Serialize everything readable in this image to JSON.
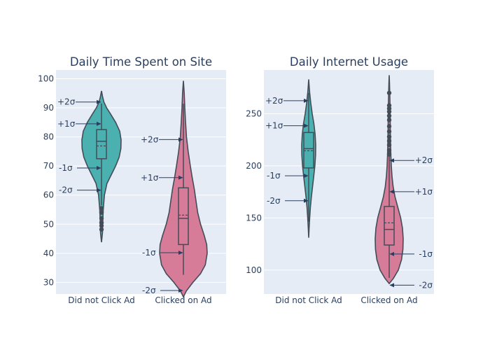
{
  "chart_data": [
    {
      "type": "violin",
      "title": "Daily Time Spent on Site",
      "categories": [
        "Did not Click Ad",
        "Clicked on Ad"
      ],
      "ylim": [
        26,
        103
      ],
      "yticks": [
        30,
        40,
        50,
        60,
        70,
        80,
        90,
        100
      ],
      "grid": true,
      "violins": [
        {
          "category": "Did not Click Ad",
          "color": "#4bb0b0",
          "min": 48.2,
          "q1": 72.5,
          "median": 78.5,
          "q3": 82.5,
          "max": 91.5,
          "mean": 76.9,
          "upper_fence": 91.5,
          "lower_fence": 56.5,
          "outliers": [
            55.5,
            54,
            52,
            50.5,
            49.5,
            48.2
          ],
          "profile_range": [
            43.8,
            95.8
          ],
          "profile": [
            [
              43.8,
              0
            ],
            [
              47,
              0.05
            ],
            [
              52,
              0.07
            ],
            [
              55,
              0.09
            ],
            [
              60,
              0.15
            ],
            [
              64,
              0.28
            ],
            [
              67,
              0.5
            ],
            [
              70,
              0.72
            ],
            [
              73,
              0.9
            ],
            [
              76,
              0.99
            ],
            [
              79,
              1.0
            ],
            [
              82,
              0.93
            ],
            [
              85,
              0.72
            ],
            [
              88,
              0.45
            ],
            [
              90,
              0.26
            ],
            [
              92,
              0.12
            ],
            [
              94,
              0.05
            ],
            [
              95.8,
              0
            ]
          ],
          "sigma_labels": [
            {
              "label": "+2σ",
              "value": 92
            },
            {
              "label": "+1σ",
              "value": 84.5
            },
            {
              "label": "-1σ",
              "value": 69.3
            },
            {
              "label": "-2σ",
              "value": 61.7
            }
          ]
        },
        {
          "category": "Clicked on Ad",
          "color": "#d77c98",
          "min": 32.6,
          "q1": 43,
          "median": 52,
          "q3": 62.5,
          "max": 91.4,
          "mean": 53.1,
          "upper_fence": 91.4,
          "lower_fence": 32.6,
          "outliers": [],
          "profile_range": [
            25,
            99.3
          ],
          "profile": [
            [
              25,
              0
            ],
            [
              27,
              0.12
            ],
            [
              30,
              0.4
            ],
            [
              33,
              0.72
            ],
            [
              36,
              0.92
            ],
            [
              40,
              1.0
            ],
            [
              43,
              0.98
            ],
            [
              46,
              0.88
            ],
            [
              50,
              0.72
            ],
            [
              54,
              0.6
            ],
            [
              58,
              0.53
            ],
            [
              62,
              0.46
            ],
            [
              66,
              0.37
            ],
            [
              70,
              0.29
            ],
            [
              75,
              0.2
            ],
            [
              80,
              0.13
            ],
            [
              85,
              0.09
            ],
            [
              90,
              0.06
            ],
            [
              95,
              0.035
            ],
            [
              99.3,
              0
            ]
          ],
          "sigma_labels": [
            {
              "label": "+2σ",
              "value": 79.1
            },
            {
              "label": "+1σ",
              "value": 66
            },
            {
              "label": "-1σ",
              "value": 40.2
            },
            {
              "label": "-2σ",
              "value": 27.2
            }
          ]
        }
      ]
    },
    {
      "type": "violin",
      "title": "Daily Internet Usage",
      "categories": [
        "Did not Click Ad",
        "Clicked on Ad"
      ],
      "ylim": [
        77,
        292
      ],
      "yticks": [
        100,
        150,
        200,
        250
      ],
      "grid": true,
      "violins": [
        {
          "category": "Did not Click Ad",
          "color": "#4bb0b0",
          "min": 146.5,
          "q1": 198,
          "median": 216.5,
          "q3": 232,
          "max": 270,
          "mean": 214.5,
          "upper_fence": 270,
          "lower_fence": 146.5,
          "outliers": [],
          "profile_range": [
            131,
            283
          ],
          "profile": [
            [
              131,
              0
            ],
            [
              140,
              0.06
            ],
            [
              150,
              0.14
            ],
            [
              160,
              0.24
            ],
            [
              170,
              0.38
            ],
            [
              180,
              0.55
            ],
            [
              190,
              0.72
            ],
            [
              200,
              0.88
            ],
            [
              210,
              0.98
            ],
            [
              220,
              1.0
            ],
            [
              230,
              0.92
            ],
            [
              240,
              0.75
            ],
            [
              250,
              0.5
            ],
            [
              260,
              0.3
            ],
            [
              270,
              0.14
            ],
            [
              276,
              0.07
            ],
            [
              283,
              0
            ]
          ],
          "sigma_labels": [
            {
              "label": "+2σ",
              "value": 262.5
            },
            {
              "label": "+1σ",
              "value": 238.5
            },
            {
              "label": "-1σ",
              "value": 190.5
            },
            {
              "label": "-2σ",
              "value": 166.5
            }
          ]
        },
        {
          "category": "Clicked on Ad",
          "color": "#d77c98",
          "min": 92.5,
          "q1": 124,
          "median": 139,
          "q3": 161,
          "max": 270,
          "mean": 145.3,
          "upper_fence": 210,
          "lower_fence": 92.5,
          "outliers": [
            270,
            258,
            255,
            252,
            248,
            244,
            238,
            233,
            228,
            224,
            220,
            215,
            211
          ],
          "profile_range": [
            87,
            287
          ],
          "profile": [
            [
              87,
              0
            ],
            [
              92,
              0.3
            ],
            [
              100,
              0.65
            ],
            [
              110,
              0.88
            ],
            [
              120,
              0.98
            ],
            [
              130,
              1.0
            ],
            [
              140,
              0.95
            ],
            [
              150,
              0.82
            ],
            [
              160,
              0.62
            ],
            [
              170,
              0.42
            ],
            [
              180,
              0.28
            ],
            [
              190,
              0.2
            ],
            [
              200,
              0.15
            ],
            [
              210,
              0.12
            ],
            [
              220,
              0.1
            ],
            [
              235,
              0.08
            ],
            [
              250,
              0.07
            ],
            [
              265,
              0.05
            ],
            [
              280,
              0.02
            ],
            [
              287,
              0
            ]
          ],
          "sigma_labels": [
            {
              "label": "+2σ",
              "value": 205.2
            },
            {
              "label": "+1σ",
              "value": 175.2
            },
            {
              "label": "-1σ",
              "value": 115.4
            },
            {
              "label": "-2σ",
              "value": 85.5
            }
          ]
        }
      ]
    }
  ]
}
